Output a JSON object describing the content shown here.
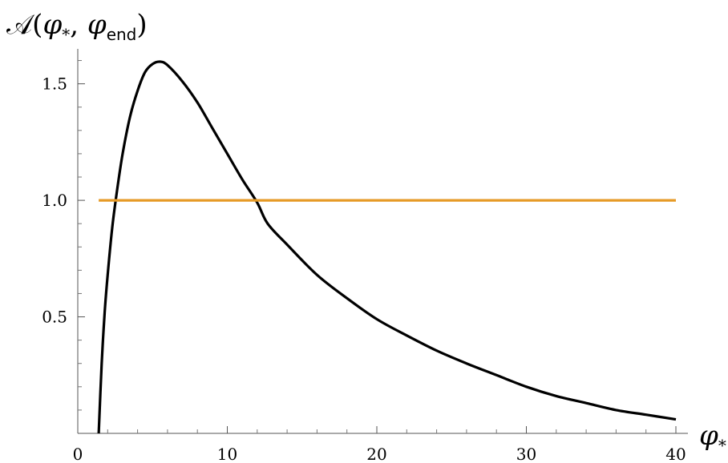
{
  "chart_data": {
    "type": "line",
    "ylabel": {
      "script": "𝒜",
      "open": "(",
      "phi1": "φ",
      "sub1": "*",
      "comma": ", ",
      "phi2": "φ",
      "sub2": "end",
      "close": ")"
    },
    "xlabel": {
      "phi": "φ",
      "sub": "*"
    },
    "xlim": [
      0,
      40
    ],
    "ylim": [
      0,
      1.65
    ],
    "x_ticks": [
      0,
      10,
      20,
      30,
      40
    ],
    "x_tick_labels": [
      "0",
      "10",
      "20",
      "30",
      "40"
    ],
    "y_ticks": [
      0.5,
      1.0,
      1.5
    ],
    "y_tick_labels": [
      "0.5",
      "1.0",
      "1.5"
    ],
    "grid": false,
    "series": [
      {
        "color": "#000000",
        "x": [
          1.4,
          1.6,
          1.8,
          2.0,
          2.3,
          2.6,
          3.0,
          3.5,
          4.0,
          4.5,
          5.0,
          5.5,
          6.0,
          7.0,
          8.0,
          9.0,
          10.0,
          11.0,
          12.0,
          12.7,
          14.0,
          16.0,
          18.0,
          20.0,
          22.0,
          24.0,
          26.0,
          28.0,
          30.0,
          32.0,
          34.0,
          36.0,
          38.0,
          40.0
        ],
        "y": [
          0.0,
          0.3,
          0.52,
          0.68,
          0.88,
          1.03,
          1.2,
          1.36,
          1.47,
          1.55,
          1.585,
          1.595,
          1.58,
          1.51,
          1.42,
          1.31,
          1.2,
          1.09,
          0.99,
          0.9,
          0.81,
          0.68,
          0.58,
          0.49,
          0.42,
          0.355,
          0.3,
          0.25,
          0.2,
          0.16,
          0.13,
          0.1,
          0.08,
          0.06
        ]
      },
      {
        "color": "#E69A25",
        "x": [
          1.4,
          40.0
        ],
        "y": [
          1.0,
          1.0
        ]
      }
    ]
  }
}
